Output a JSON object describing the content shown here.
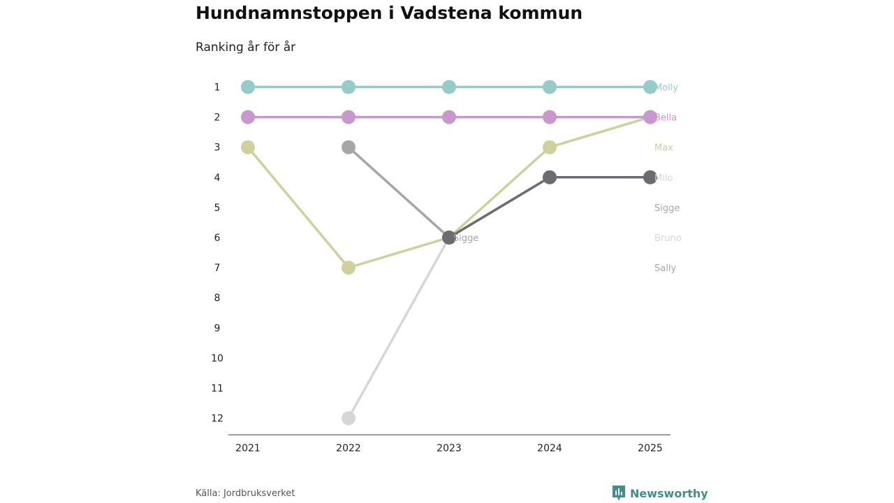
{
  "title": "Hundnamnstoppen i Vadstena kommun",
  "subtitle": "Ranking år för år",
  "source": "Källa: Jordbruksverket",
  "brand": {
    "name": "Newsworthy",
    "icon": "newsworthy-logo-icon",
    "color": "#3f8f8b"
  },
  "chart_data": {
    "type": "line",
    "title": "Hundnamnstoppen i Vadstena kommun",
    "subtitle": "Ranking år för år",
    "xlabel": "",
    "ylabel": "",
    "x": [
      "2021",
      "2022",
      "2023",
      "2024",
      "2025"
    ],
    "y_ticks": [
      "1",
      "2",
      "3",
      "4",
      "5",
      "6",
      "7",
      "8",
      "9",
      "10",
      "11",
      "12"
    ],
    "ylim": [
      1,
      12
    ],
    "y_inverted": true,
    "series": [
      {
        "name": "Bruno",
        "color": "#d6d6d6",
        "values": [
          null,
          12,
          6,
          4,
          4
        ]
      },
      {
        "name": "Sigge",
        "color": "#a6a6a6",
        "values": [
          null,
          3,
          6,
          null,
          null
        ]
      },
      {
        "name": "Max",
        "color": "#cfd09c",
        "values": [
          3,
          7,
          6,
          3,
          2
        ]
      },
      {
        "name": "Bella",
        "color": "#c996cd",
        "values": [
          2,
          2,
          2,
          2,
          2
        ]
      },
      {
        "name": "Molly",
        "color": "#96cbca",
        "values": [
          1,
          1,
          1,
          1,
          1
        ]
      },
      {
        "name": "Milo",
        "color": "#6b6b73",
        "values": [
          null,
          null,
          6,
          4,
          4
        ]
      }
    ],
    "end_labels": [
      {
        "name": "Molly",
        "rank": 1,
        "color": "#96cbca"
      },
      {
        "name": "Bella",
        "rank": 2,
        "color": "#c996cd"
      },
      {
        "name": "Max",
        "rank": 3,
        "color": "#cfd09c"
      },
      {
        "name": "Milo",
        "rank": 4,
        "color": "#d6d6d6"
      },
      {
        "name": "Sigge",
        "rank": 5,
        "color": "#a6a6a6"
      },
      {
        "name": "Bruno",
        "rank": 6,
        "color": "#d6d6d6"
      },
      {
        "name": "Sally",
        "rank": 7,
        "color": "#a6a6a6"
      }
    ],
    "annotations": [
      {
        "text": "Sigge",
        "x": "2023",
        "rank": 6,
        "color": "#a6a6a6"
      }
    ]
  }
}
